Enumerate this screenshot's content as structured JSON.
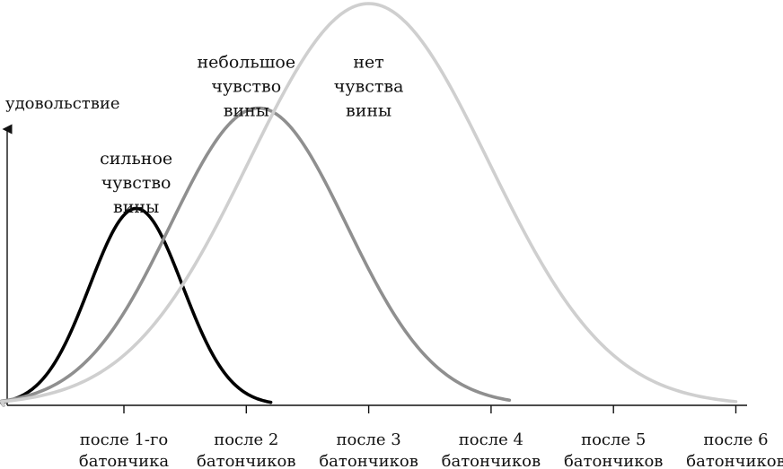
{
  "chart_data": {
    "type": "line",
    "ylabel": "удовольствие",
    "xlabel": "",
    "categories": [
      [
        "после 1-го",
        "батончика"
      ],
      [
        "после 2",
        "батончиков"
      ],
      [
        "после 3",
        "батончиков"
      ],
      [
        "после 4",
        "батончиков"
      ],
      [
        "после 5",
        "батончиков"
      ],
      [
        "после 6",
        "батончиков"
      ]
    ],
    "xlim": [
      0,
      6
    ],
    "ylim": [
      0,
      1
    ],
    "grid": false,
    "legend": "none",
    "series": [
      {
        "name": "сильное чувство вины",
        "label_lines": [
          "сильное",
          "чувство",
          "вины"
        ],
        "color": "#000000",
        "peak_x": 1.1,
        "peak": 0.49,
        "spread": 0.38,
        "x_end": 2.2,
        "label_x": 1.1,
        "label_y": 0.6
      },
      {
        "name": "небольшое чувство вины",
        "label_lines": [
          "небольшое",
          "чувство",
          "вины"
        ],
        "color": "#8f8f8f",
        "peak_x": 2.1,
        "peak": 0.74,
        "spread": 0.72,
        "x_end": 4.15,
        "label_x": 2.0,
        "label_y": 0.84
      },
      {
        "name": "нет чувства вины",
        "label_lines": [
          "нет",
          "чувства",
          "вины"
        ],
        "color": "#cfcfcf",
        "peak_x": 3.0,
        "peak": 1.0,
        "spread": 0.98,
        "x_end": 6.0,
        "label_x": 3.0,
        "label_y": 0.84
      }
    ]
  }
}
